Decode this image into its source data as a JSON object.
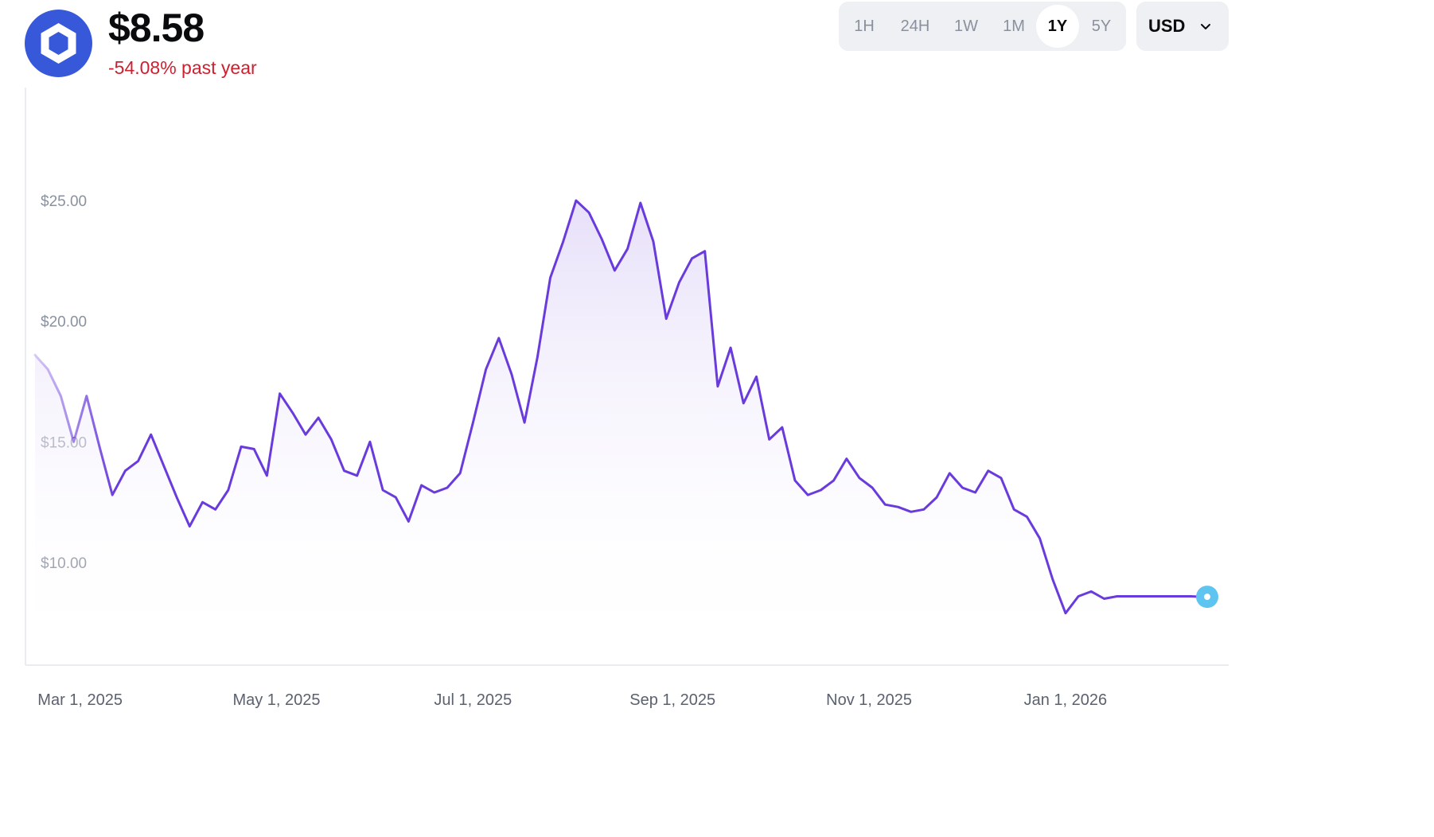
{
  "header": {
    "price": "$8.58",
    "change": "-54.08% past year",
    "logo_icon": "chainlink-hexagon-icon",
    "logo_color": "#3758d8"
  },
  "range": {
    "options": [
      "1H",
      "24H",
      "1W",
      "1M",
      "1Y",
      "5Y"
    ],
    "selected": "1Y"
  },
  "currency": {
    "label": "USD",
    "icon": "chevron-down-icon"
  },
  "colors": {
    "line": "#6a3bdc",
    "fill_top": "#e6def9",
    "baseline": "#5ec4f0",
    "negative": "#cf202f"
  },
  "chart_data": {
    "type": "area",
    "yticks": [
      "$25.00",
      "$20.00",
      "$15.00",
      "$10.00"
    ],
    "ytick_values": [
      25,
      20,
      15,
      10
    ],
    "xticks": [
      "Mar 1, 2025",
      "May 1, 2025",
      "Jul 1, 2025",
      "Sep 1, 2025",
      "Nov 1, 2025",
      "Jan 1, 2026"
    ],
    "xtick_dates": [
      "2025-03-01",
      "2025-05-01",
      "2025-07-01",
      "2025-09-01",
      "2025-11-01",
      "2026-01-01"
    ],
    "x_start": "2025-02-15",
    "x_end": "2026-02-15",
    "ylim": [
      6,
      30
    ],
    "current_value": 8.58,
    "grid": false,
    "x": [
      "2025-02-16",
      "2025-02-20",
      "2025-02-24",
      "2025-02-28",
      "2025-03-04",
      "2025-03-08",
      "2025-03-12",
      "2025-03-16",
      "2025-03-20",
      "2025-03-24",
      "2025-03-28",
      "2025-04-01",
      "2025-04-05",
      "2025-04-09",
      "2025-04-13",
      "2025-04-17",
      "2025-04-21",
      "2025-04-25",
      "2025-04-29",
      "2025-05-03",
      "2025-05-07",
      "2025-05-11",
      "2025-05-15",
      "2025-05-19",
      "2025-05-23",
      "2025-05-27",
      "2025-05-31",
      "2025-06-04",
      "2025-06-08",
      "2025-06-12",
      "2025-06-16",
      "2025-06-20",
      "2025-06-24",
      "2025-06-28",
      "2025-07-02",
      "2025-07-06",
      "2025-07-10",
      "2025-07-14",
      "2025-07-18",
      "2025-07-22",
      "2025-07-26",
      "2025-07-30",
      "2025-08-03",
      "2025-08-07",
      "2025-08-11",
      "2025-08-15",
      "2025-08-19",
      "2025-08-23",
      "2025-08-27",
      "2025-08-31",
      "2025-09-04",
      "2025-09-08",
      "2025-09-12",
      "2025-09-16",
      "2025-09-20",
      "2025-09-24",
      "2025-09-28",
      "2025-10-02",
      "2025-10-06",
      "2025-10-10",
      "2025-10-14",
      "2025-10-18",
      "2025-10-22",
      "2025-10-26",
      "2025-10-30",
      "2025-11-03",
      "2025-11-07",
      "2025-11-11",
      "2025-11-15",
      "2025-11-19",
      "2025-11-23",
      "2025-11-27",
      "2025-12-01",
      "2025-12-05",
      "2025-12-09",
      "2025-12-13",
      "2025-12-17",
      "2025-12-21",
      "2025-12-25",
      "2025-12-29",
      "2026-01-02",
      "2026-01-06",
      "2026-01-10",
      "2026-01-14",
      "2026-01-18",
      "2026-01-22",
      "2026-01-26",
      "2026-01-30",
      "2026-02-03",
      "2026-02-07",
      "2026-02-10",
      "2026-02-13"
    ],
    "series": [
      {
        "values": [
          18.6,
          18.0,
          16.9,
          15.0,
          16.9,
          14.8,
          12.8,
          13.8,
          14.2,
          15.3,
          14.0,
          12.7,
          11.5,
          12.5,
          12.2,
          13.0,
          14.8,
          14.7,
          13.6,
          17.0,
          16.2,
          15.3,
          16.0,
          15.1,
          13.8,
          13.6,
          15.0,
          13.0,
          12.7,
          11.7,
          13.2,
          12.9,
          13.1,
          13.7,
          15.8,
          18.0,
          19.3,
          17.8,
          15.8,
          18.5,
          21.8,
          23.3,
          25.0,
          24.5,
          23.4,
          22.1,
          23.0,
          24.9,
          23.3,
          20.1,
          21.6,
          22.6,
          22.9,
          17.3,
          18.9,
          16.6,
          17.7,
          15.1,
          15.6,
          13.4,
          12.8,
          13.0,
          13.4,
          14.3,
          13.5,
          13.1,
          12.4,
          12.3,
          12.1,
          12.2,
          12.7,
          13.7,
          13.1,
          12.9,
          13.8,
          13.5,
          12.2,
          11.9,
          11.0,
          9.3,
          7.9,
          8.6,
          8.8,
          8.5,
          8.6,
          8.6,
          8.6,
          8.6,
          8.6,
          8.6,
          8.6,
          8.58
        ]
      }
    ]
  }
}
